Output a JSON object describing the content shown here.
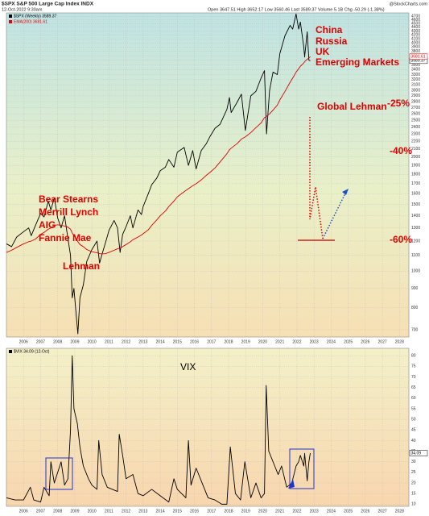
{
  "chart_data": [
    {
      "type": "line",
      "title": "$SPX S&P 500 Large Cap Index  INDX",
      "date": "12-Oct-2022 9:30am",
      "quote": "Open 3647.51  High 3652.17  Low 3560.46  Last 3589.37  Volume 5.1B  Chg -50.29 (-1.38%)",
      "source": "@StockCharts.com",
      "log_scale": true,
      "grid": true,
      "xlim": [
        2005,
        2028.55
      ],
      "xticks": [
        2006,
        2007,
        2008,
        2009,
        2010,
        2011,
        2012,
        2013,
        2014,
        2015,
        2016,
        2017,
        2018,
        2019,
        2020,
        2021,
        2022,
        2023,
        2024,
        2025,
        2026,
        2027,
        2028
      ],
      "ylim": [
        670,
        4800
      ],
      "yticks": [
        700,
        800,
        900,
        1000,
        1100,
        1200,
        1300,
        1400,
        1500,
        1600,
        1700,
        1800,
        1900,
        2000,
        2100,
        2200,
        2300,
        2400,
        2500,
        2600,
        2700,
        2800,
        2900,
        3000,
        3100,
        3200,
        3300,
        3400,
        3500,
        3600,
        3700,
        3800,
        3900,
        4000,
        4100,
        4200,
        4300,
        4400,
        4500,
        4600,
        4700
      ],
      "x": [
        2005.0,
        2005.3,
        2005.6,
        2006.0,
        2006.3,
        2006.45,
        2006.7,
        2007.0,
        2007.2,
        2007.45,
        2007.6,
        2007.8,
        2008.0,
        2008.2,
        2008.4,
        2008.55,
        2008.75,
        2008.85,
        2008.95,
        2009.1,
        2009.18,
        2009.3,
        2009.5,
        2009.7,
        2010.0,
        2010.3,
        2010.45,
        2010.6,
        2010.8,
        2011.0,
        2011.3,
        2011.5,
        2011.65,
        2011.8,
        2012.0,
        2012.25,
        2012.4,
        2012.7,
        2012.9,
        2013.0,
        2013.3,
        2013.5,
        2013.8,
        2014.0,
        2014.3,
        2014.5,
        2014.8,
        2015.0,
        2015.4,
        2015.65,
        2015.9,
        2016.1,
        2016.4,
        2016.7,
        2016.9,
        2017.2,
        2017.5,
        2017.9,
        2018.05,
        2018.15,
        2018.5,
        2018.75,
        2018.98,
        2019.3,
        2019.6,
        2019.9,
        2020.1,
        2020.22,
        2020.4,
        2020.6,
        2020.85,
        2021.0,
        2021.3,
        2021.6,
        2021.75,
        2021.95,
        2022.1,
        2022.2,
        2022.4,
        2022.45,
        2022.6,
        2022.7,
        2022.78
      ],
      "series": [
        {
          "name": "$SPX (Weekly) 3589.37",
          "color": "#000000",
          "values": [
            1180,
            1160,
            1230,
            1270,
            1300,
            1240,
            1320,
            1420,
            1390,
            1530,
            1450,
            1560,
            1380,
            1300,
            1400,
            1260,
            1100,
            850,
            900,
            750,
            683,
            850,
            920,
            1060,
            1140,
            1200,
            1050,
            1110,
            1190,
            1280,
            1360,
            1300,
            1120,
            1250,
            1310,
            1400,
            1300,
            1450,
            1410,
            1480,
            1600,
            1690,
            1760,
            1840,
            1880,
            1970,
            1880,
            2060,
            2120,
            1900,
            2080,
            1860,
            2080,
            2170,
            2260,
            2380,
            2440,
            2670,
            2870,
            2620,
            2790,
            2930,
            2350,
            2900,
            2980,
            3230,
            3380,
            2300,
            3000,
            3350,
            3300,
            3750,
            4180,
            4450,
            4350,
            4770,
            4350,
            4540,
            3900,
            3670,
            4280,
            3600,
            3589.37
          ]
        },
        {
          "name": "EMA(200) 3681.61",
          "color": "#e00000",
          "values": [
            1120,
            1135,
            1155,
            1180,
            1195,
            1200,
            1215,
            1250,
            1265,
            1290,
            1300,
            1320,
            1325,
            1320,
            1315,
            1310,
            1290,
            1260,
            1240,
            1215,
            1195,
            1175,
            1160,
            1140,
            1125,
            1118,
            1112,
            1110,
            1112,
            1120,
            1135,
            1145,
            1150,
            1160,
            1175,
            1195,
            1210,
            1230,
            1245,
            1255,
            1285,
            1320,
            1365,
            1400,
            1440,
            1480,
            1530,
            1570,
            1620,
            1650,
            1680,
            1700,
            1740,
            1790,
            1820,
            1870,
            1940,
            2040,
            2090,
            2110,
            2170,
            2230,
            2260,
            2320,
            2390,
            2460,
            2540,
            2560,
            2600,
            2660,
            2740,
            2830,
            2980,
            3150,
            3230,
            3350,
            3420,
            3470,
            3540,
            3570,
            3620,
            3650,
            3681.61
          ]
        }
      ],
      "annotations": [
        "China",
        "Russia",
        "UK",
        "Emerging Markets",
        "Global Lehman",
        "-25%",
        "-40%",
        "-60%",
        "Bear Stearns",
        "Merrill Lynch",
        "AIG",
        "Fannie Mae",
        "Lehman"
      ]
    },
    {
      "type": "line",
      "grid": true,
      "xlim": [
        2005,
        2028.55
      ],
      "xticks": [
        2006,
        2007,
        2008,
        2009,
        2010,
        2011,
        2012,
        2013,
        2014,
        2015,
        2016,
        2017,
        2018,
        2019,
        2020,
        2021,
        2022,
        2023,
        2024,
        2025,
        2026,
        2027,
        2028
      ],
      "ylim": [
        9,
        83.5
      ],
      "yticks": [
        10,
        15,
        20,
        25,
        30,
        35,
        40,
        45,
        50,
        55,
        60,
        65,
        70,
        75,
        80
      ],
      "x": [
        2005.0,
        2005.5,
        2006.0,
        2006.4,
        2006.6,
        2007.0,
        2007.2,
        2007.5,
        2007.6,
        2007.8,
        2008.0,
        2008.2,
        2008.4,
        2008.6,
        2008.75,
        2008.85,
        2008.95,
        2009.15,
        2009.3,
        2009.5,
        2009.8,
        2010.0,
        2010.3,
        2010.4,
        2010.6,
        2010.9,
        2011.2,
        2011.5,
        2011.6,
        2011.8,
        2012.0,
        2012.4,
        2012.7,
        2013.0,
        2013.5,
        2014.0,
        2014.5,
        2014.8,
        2015.0,
        2015.5,
        2015.65,
        2015.8,
        2016.1,
        2016.5,
        2016.8,
        2017.2,
        2017.6,
        2017.9,
        2018.1,
        2018.4,
        2018.7,
        2018.95,
        2019.3,
        2019.6,
        2019.9,
        2020.1,
        2020.2,
        2020.35,
        2020.7,
        2020.9,
        2021.1,
        2021.4,
        2021.7,
        2021.95,
        2022.1,
        2022.2,
        2022.4,
        2022.45,
        2022.6,
        2022.7,
        2022.78
      ],
      "series": [
        {
          "name": "$VIX 34.09 (12-Oct)",
          "color": "#000000",
          "values": [
            13,
            12,
            12,
            18,
            12,
            11,
            18,
            14,
            30,
            20,
            25,
            30,
            19,
            22,
            45,
            80,
            55,
            48,
            37,
            28,
            22,
            19,
            17,
            40,
            24,
            18,
            17,
            16,
            43,
            33,
            22,
            24,
            15,
            14,
            17,
            14,
            11,
            22,
            17,
            13,
            40,
            19,
            27,
            19,
            13,
            12,
            10,
            10,
            37,
            15,
            12,
            30,
            13,
            20,
            13,
            15,
            66,
            35,
            28,
            24,
            28,
            18,
            20,
            28,
            30,
            33,
            28,
            34,
            21,
            30,
            34.09
          ]
        }
      ],
      "annotations": [
        "VIX"
      ]
    }
  ]
}
